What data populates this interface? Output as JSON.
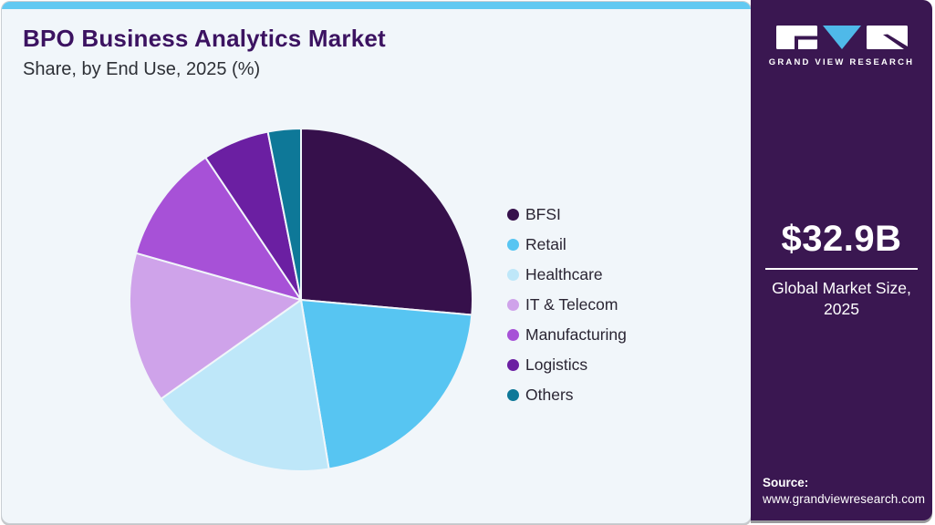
{
  "header": {
    "title": "BPO Business Analytics Market",
    "subtitle": "Share, by End Use, 2025 (%)"
  },
  "chart_data": {
    "type": "pie",
    "title": "BPO Business Analytics Market Share, by End Use, 2025 (%)",
    "unit": "%",
    "start_angle_deg": 0,
    "direction": "clockwise",
    "legend_position": "right",
    "categories": [
      "BFSI",
      "Retail",
      "Healthcare",
      "IT & Telecom",
      "Manufacturing",
      "Logistics",
      "Others"
    ],
    "values": [
      26.4,
      21.0,
      17.8,
      14.2,
      11.2,
      6.3,
      3.1
    ],
    "colors": [
      "#36104B",
      "#57C5F2",
      "#BEE7F9",
      "#CFA3EA",
      "#A751D7",
      "#6B1FA2",
      "#0E7898"
    ]
  },
  "sidebar": {
    "logo": {
      "brand": "GRAND VIEW RESEARCH"
    },
    "market_size_value": "$32.9B",
    "market_size_label": "Global Market Size, 2025",
    "source_label": "Source:",
    "source_url": "www.grandviewresearch.com"
  },
  "theme": {
    "card_background": "#F1F6FA",
    "accent_bar": "#62C9F2",
    "title_color": "#3C1361",
    "sidebar_background": "#3A1751",
    "logo_triangle_blue": "#4FB9E9"
  }
}
